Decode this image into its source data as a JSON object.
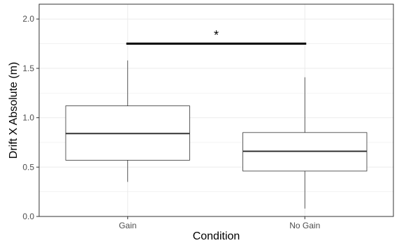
{
  "chart_data": {
    "type": "boxplot",
    "title": "",
    "xlabel": "Condition",
    "ylabel": "Drift X Absolute (m)",
    "ylim": [
      0,
      2.15
    ],
    "yticks": [
      0.0,
      0.5,
      1.0,
      1.5,
      2.0
    ],
    "ytick_labels": [
      "0.0",
      "0.5",
      "1.0",
      "1.5",
      "2.0"
    ],
    "grid": true,
    "categories": [
      "Gain",
      "No Gain"
    ],
    "boxes": [
      {
        "category": "Gain",
        "whisker_low": 0.35,
        "q1": 0.57,
        "median": 0.84,
        "q3": 1.12,
        "whisker_high": 1.58
      },
      {
        "category": "No Gain",
        "whisker_low": 0.08,
        "q1": 0.46,
        "median": 0.66,
        "q3": 0.85,
        "whisker_high": 1.41
      }
    ],
    "significance": {
      "between": [
        "Gain",
        "No Gain"
      ],
      "y": 1.75,
      "label": "*"
    }
  },
  "colors": {
    "box_outline": "#333333",
    "median": "#333333",
    "grid": "#ebebeb",
    "panel_border": "#333333",
    "significance_bar": "#000000"
  }
}
